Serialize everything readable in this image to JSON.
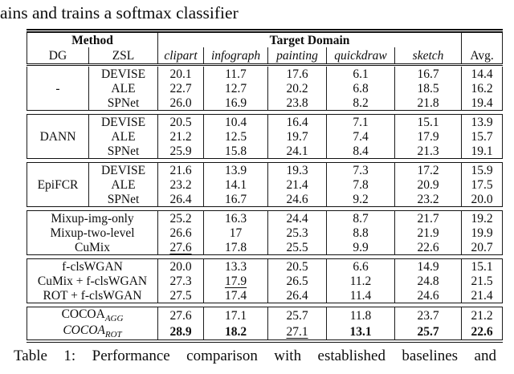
{
  "page": {
    "top_text": "ains and trains a softmax classifier",
    "caption": "Table 1: Performance comparison with established baselines and"
  },
  "colors": {
    "ink": "#0d0d0d",
    "rule": "#111111",
    "background": "#ffffff"
  },
  "table": {
    "header": {
      "method": "Method",
      "target_domain": "Target Domain",
      "dg": "DG",
      "zsl": "ZSL",
      "domains": [
        "clipart",
        "infograph",
        "painting",
        "quickdraw",
        "sketch"
      ],
      "avg": "Avg."
    },
    "groups": [
      {
        "dg": "-",
        "rows": [
          {
            "zsl": "DEVISE",
            "values": [
              "20.1",
              "11.7",
              "17.6",
              "6.1",
              "16.7",
              "14.4"
            ]
          },
          {
            "zsl": "ALE",
            "values": [
              "22.7",
              "12.7",
              "20.2",
              "6.8",
              "18.5",
              "16.2"
            ]
          },
          {
            "zsl": "SPNet",
            "values": [
              "26.0",
              "16.9",
              "23.8",
              "8.2",
              "21.8",
              "19.4"
            ]
          }
        ]
      },
      {
        "dg": "DANN",
        "rows": [
          {
            "zsl": "DEVISE",
            "values": [
              "20.5",
              "10.4",
              "16.4",
              "7.1",
              "15.1",
              "13.9"
            ]
          },
          {
            "zsl": "ALE",
            "values": [
              "21.2",
              "12.5",
              "19.7",
              "7.4",
              "17.9",
              "15.7"
            ]
          },
          {
            "zsl": "SPNet",
            "values": [
              "25.9",
              "15.8",
              "24.1",
              "8.4",
              "21.3",
              "19.1"
            ]
          }
        ]
      },
      {
        "dg": "EpiFCR",
        "rows": [
          {
            "zsl": "DEVISE",
            "values": [
              "21.6",
              "13.9",
              "19.3",
              "7.3",
              "17.2",
              "15.9"
            ]
          },
          {
            "zsl": "ALE",
            "values": [
              "23.2",
              "14.1",
              "21.4",
              "7.8",
              "20.9",
              "17.5"
            ]
          },
          {
            "zsl": "SPNet",
            "values": [
              "26.4",
              "16.7",
              "24.6",
              "9.2",
              "23.2",
              "20.0"
            ]
          }
        ]
      },
      {
        "rows": [
          {
            "method": "Mixup-img-only",
            "values": [
              "25.2",
              "16.3",
              "24.4",
              "8.7",
              "21.7",
              "19.2"
            ]
          },
          {
            "method": "Mixup-two-level",
            "values": [
              "26.6",
              "17",
              "25.3",
              "8.8",
              "21.9",
              "19.9"
            ]
          },
          {
            "method": "CuMix",
            "values": [
              "27.6",
              "17.8",
              "25.5",
              "9.9",
              "22.6",
              "20.7"
            ]
          }
        ]
      },
      {
        "rows": [
          {
            "method": "f-clsWGAN",
            "values": [
              "20.0",
              "13.3",
              "20.5",
              "6.6",
              "14.9",
              "15.1"
            ]
          },
          {
            "method": "CuMix + f-clsWGAN",
            "values": [
              "27.3",
              "17.9",
              "26.5",
              "11.2",
              "24.8",
              "21.5"
            ]
          },
          {
            "method": "ROT + f-clsWGAN",
            "values": [
              "27.5",
              "17.4",
              "26.4",
              "11.4",
              "24.6",
              "21.4"
            ]
          }
        ]
      },
      {
        "rows": [
          {
            "method_main": "COCOA",
            "method_sub": "AGG",
            "values": [
              "27.6",
              "17.1",
              "25.7",
              "11.8",
              "23.7",
              "21.2"
            ]
          },
          {
            "method_main": "COCOA",
            "method_sub": "ROT",
            "values": [
              "28.9",
              "18.2",
              "27.1",
              "13.1",
              "25.7",
              "22.6"
            ]
          }
        ]
      }
    ]
  }
}
